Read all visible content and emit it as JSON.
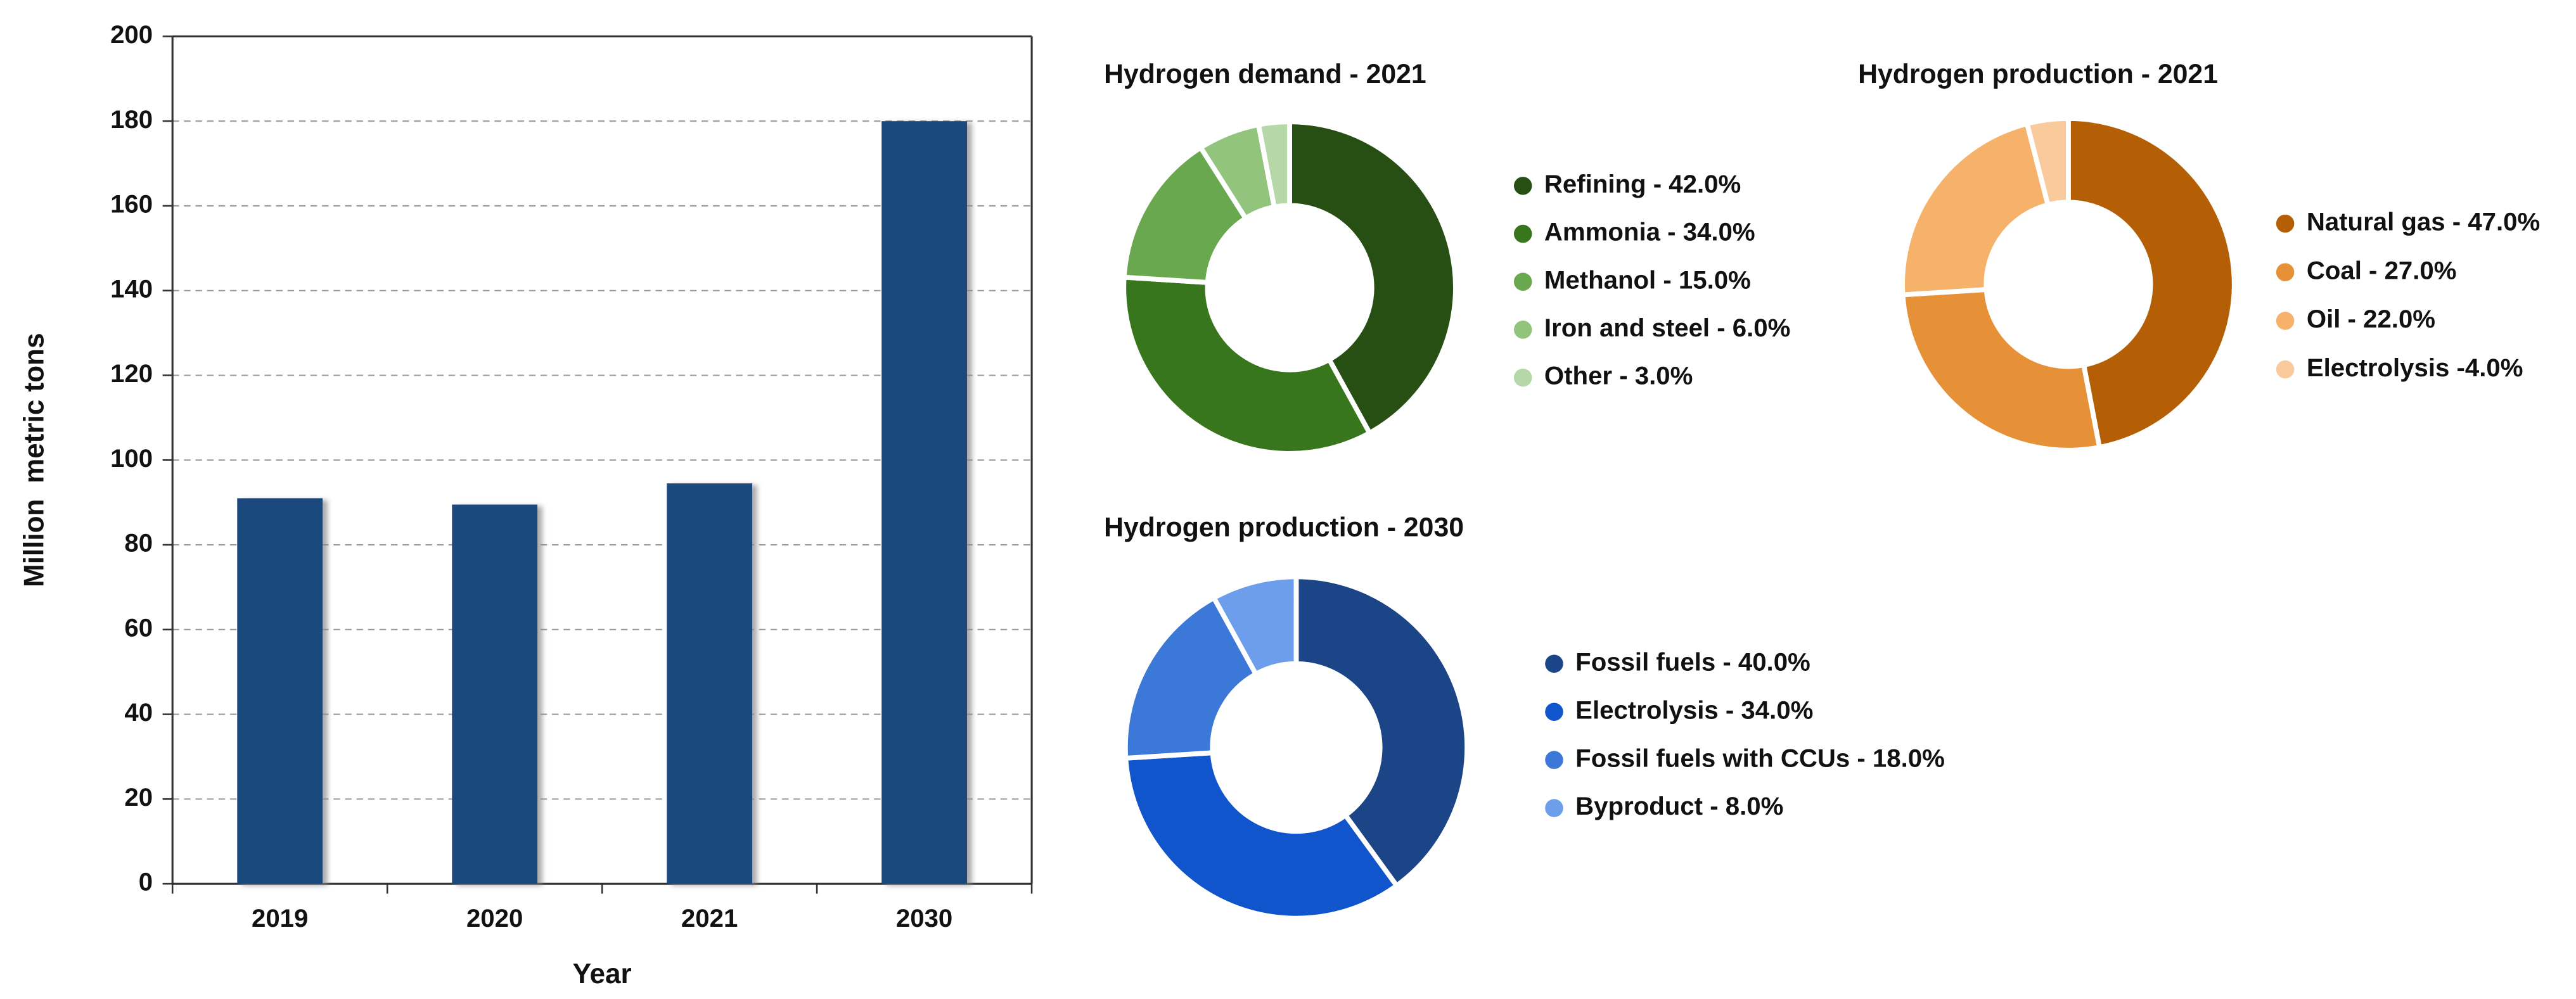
{
  "chart_data": [
    {
      "type": "bar",
      "x_label": "Year",
      "y_label": "Million  metric tons",
      "categories": [
        "2019",
        "2020",
        "2021",
        "2030"
      ],
      "values": [
        91,
        89.5,
        94.5,
        180
      ],
      "color": "#1f497d",
      "ylim": [
        0,
        200
      ],
      "yticks": [
        0,
        20,
        40,
        60,
        80,
        100,
        120,
        140,
        160,
        180,
        200
      ],
      "grid": true
    },
    {
      "type": "donut",
      "title": "Hydrogen demand - 2021",
      "categories": [
        "Refining - 42.0%",
        "Ammonia - 34.0%",
        "Methanol - 15.0%",
        "Iron and steel - 6.0%",
        "Other - 3.0%"
      ],
      "values": [
        42,
        34,
        15,
        6,
        3
      ],
      "colors": [
        "#274e13",
        "#38761d",
        "#6aa84f",
        "#93c47d",
        "#b6d7a8"
      ]
    },
    {
      "type": "donut",
      "title": "Hydrogen production - 2021",
      "categories": [
        "Natural gas - 47.0%",
        "Coal - 27.0%",
        "Oil - 22.0%",
        "Electrolysis -4.0%"
      ],
      "values": [
        47,
        27,
        22,
        4
      ],
      "colors": [
        "#b45f06",
        "#e69138",
        "#f6b26b",
        "#f9cb9c"
      ]
    },
    {
      "type": "donut",
      "title": "Hydrogen production - 2030",
      "categories": [
        "Fossil fuels - 40.0%",
        "Electrolysis - 34.0%",
        "Fossil fuels with CCUs - 18.0%",
        "Byproduct - 8.0%"
      ],
      "values": [
        40,
        34,
        18,
        8
      ],
      "colors": [
        "#1c4587",
        "#1155cc",
        "#3c78d8",
        "#6d9eeb"
      ]
    }
  ]
}
